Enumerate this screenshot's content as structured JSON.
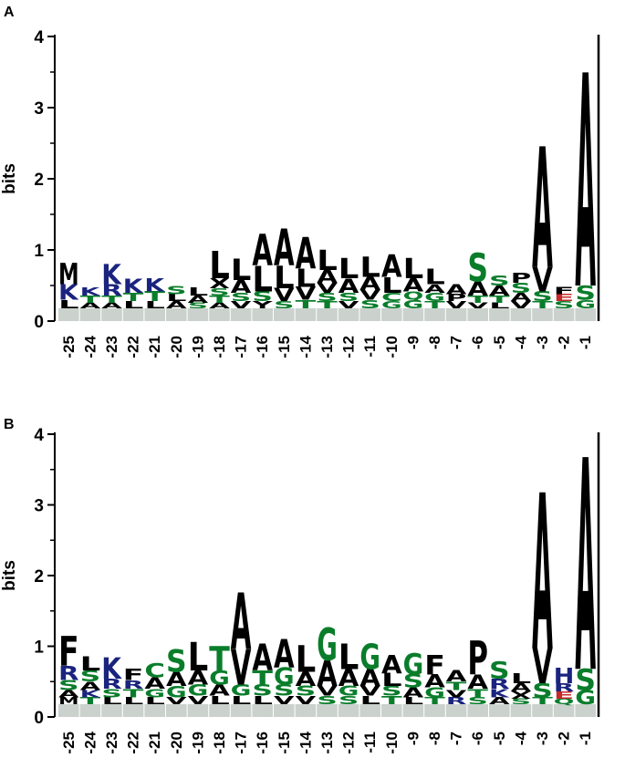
{
  "chart_data": [
    {
      "type": "sequence-logo",
      "panel_label": "A",
      "ylabel": "bits",
      "ylim": [
        0,
        4
      ],
      "yticks": [
        "0",
        "1",
        "2",
        "3",
        "4"
      ],
      "positions": [
        "-25",
        "-24",
        "-23",
        "-22",
        "-21",
        "-20",
        "-19",
        "-18",
        "-17",
        "-16",
        "-15",
        "-14",
        "-13",
        "-12",
        "-11",
        "-10",
        "-9",
        "-8",
        "-7",
        "-6",
        "-5",
        "-4",
        "-3",
        "-2",
        "-1"
      ],
      "stacks": [
        [
          [
            "M",
            0.3,
            "#000000"
          ],
          [
            "K",
            0.22,
            "#1a237e"
          ],
          [
            "L",
            0.12,
            "#000000"
          ]
        ],
        [
          [
            "K",
            0.12,
            "#1a237e"
          ],
          [
            "T",
            0.1,
            "#0a7d2b"
          ],
          [
            "A",
            0.08,
            "#000000"
          ]
        ],
        [
          [
            "K",
            0.28,
            "#1a237e"
          ],
          [
            "R",
            0.16,
            "#1a237e"
          ],
          [
            "T",
            0.1,
            "#0a7d2b"
          ],
          [
            "A",
            0.08,
            "#000000"
          ]
        ],
        [
          [
            "K",
            0.2,
            "#1a237e"
          ],
          [
            "T",
            0.12,
            "#0a7d2b"
          ],
          [
            "L",
            0.1,
            "#000000"
          ]
        ],
        [
          [
            "K",
            0.18,
            "#1a237e"
          ],
          [
            "T",
            0.14,
            "#0a7d2b"
          ],
          [
            "L",
            0.1,
            "#000000"
          ]
        ],
        [
          [
            "S",
            0.12,
            "#0a7d2b"
          ],
          [
            "L",
            0.1,
            "#000000"
          ],
          [
            "A",
            0.1,
            "#000000"
          ]
        ],
        [
          [
            "L",
            0.12,
            "#000000"
          ],
          [
            "A",
            0.1,
            "#000000"
          ],
          [
            "S",
            0.08,
            "#0a7d2b"
          ]
        ],
        [
          [
            "L",
            0.38,
            "#000000"
          ],
          [
            "X",
            0.14,
            "#000000"
          ],
          [
            "S",
            0.1,
            "#0a7d2b"
          ],
          [
            "T",
            0.1,
            "#0a7d2b"
          ],
          [
            "A",
            0.08,
            "#000000"
          ]
        ],
        [
          [
            "L",
            0.3,
            "#000000"
          ],
          [
            "A",
            0.18,
            "#000000"
          ],
          [
            "S",
            0.12,
            "#0a7d2b"
          ],
          [
            "V",
            0.1,
            "#000000"
          ]
        ],
        [
          [
            "A",
            0.44,
            "#000000"
          ],
          [
            "L",
            0.36,
            "#000000"
          ],
          [
            "S",
            0.14,
            "#0a7d2b"
          ],
          [
            "Y",
            0.1,
            "#000000"
          ]
        ],
        [
          [
            "A",
            0.52,
            "#000000"
          ],
          [
            "L",
            0.32,
            "#000000"
          ],
          [
            "V",
            0.18,
            "#000000"
          ],
          [
            "S",
            0.1,
            "#0a7d2b"
          ]
        ],
        [
          [
            "A",
            0.44,
            "#000000"
          ],
          [
            "L",
            0.26,
            "#000000"
          ],
          [
            "V",
            0.18,
            "#000000"
          ],
          [
            "T",
            0.12,
            "#0a7d2b"
          ]
        ],
        [
          [
            "L",
            0.28,
            "#000000"
          ],
          [
            "A",
            0.18,
            "#000000"
          ],
          [
            "V",
            0.14,
            "#000000"
          ],
          [
            "S",
            0.12,
            "#0a7d2b"
          ],
          [
            "T",
            0.1,
            "#0a7d2b"
          ]
        ],
        [
          [
            "L",
            0.28,
            "#000000"
          ],
          [
            "A",
            0.2,
            "#000000"
          ],
          [
            "S",
            0.12,
            "#0a7d2b"
          ],
          [
            "V",
            0.1,
            "#000000"
          ]
        ],
        [
          [
            "L",
            0.28,
            "#000000"
          ],
          [
            "A",
            0.18,
            "#000000"
          ],
          [
            "V",
            0.14,
            "#000000"
          ],
          [
            "S",
            0.12,
            "#0a7d2b"
          ]
        ],
        [
          [
            "A",
            0.32,
            "#000000"
          ],
          [
            "L",
            0.22,
            "#000000"
          ],
          [
            "C",
            0.12,
            "#0a7d2b"
          ],
          [
            "G",
            0.1,
            "#0a7d2b"
          ]
        ],
        [
          [
            "L",
            0.28,
            "#000000"
          ],
          [
            "A",
            0.18,
            "#000000"
          ],
          [
            "Q",
            0.12,
            "#0a7d2b"
          ],
          [
            "G",
            0.12,
            "#0a7d2b"
          ]
        ],
        [
          [
            "L",
            0.22,
            "#000000"
          ],
          [
            "A",
            0.12,
            "#000000"
          ],
          [
            "G",
            0.12,
            "#0a7d2b"
          ],
          [
            "T",
            0.1,
            "#0a7d2b"
          ]
        ],
        [
          [
            "A",
            0.14,
            "#000000"
          ],
          [
            "P",
            0.1,
            "#000000"
          ],
          [
            "V",
            0.1,
            "#000000"
          ]
        ],
        [
          [
            "S",
            0.4,
            "#0a7d2b"
          ],
          [
            "A",
            0.2,
            "#000000"
          ],
          [
            "T",
            0.1,
            "#0a7d2b"
          ],
          [
            "V",
            0.08,
            "#000000"
          ]
        ],
        [
          [
            "S",
            0.14,
            "#0a7d2b"
          ],
          [
            "A",
            0.14,
            "#000000"
          ],
          [
            "T",
            0.1,
            "#0a7d2b"
          ],
          [
            "L",
            0.08,
            "#000000"
          ]
        ],
        [
          [
            "P",
            0.14,
            "#000000"
          ],
          [
            "S",
            0.14,
            "#0a7d2b"
          ],
          [
            "A",
            0.12,
            "#000000"
          ],
          [
            "V",
            0.1,
            "#000000"
          ]
        ],
        [
          [
            "A",
            1.7,
            "#000000"
          ],
          [
            "V",
            0.34,
            "#000000"
          ],
          [
            "S",
            0.14,
            "#0a7d2b"
          ],
          [
            "T",
            0.1,
            "#0a7d2b"
          ]
        ],
        [
          [
            "F",
            0.1,
            "#000000"
          ],
          [
            "E",
            0.1,
            "#c62828"
          ],
          [
            "S",
            0.1,
            "#0a7d2b"
          ]
        ],
        [
          [
            "A",
            3.0,
            "#000000"
          ],
          [
            "S",
            0.2,
            "#0a7d2b"
          ],
          [
            "G",
            0.12,
            "#0a7d2b"
          ]
        ]
      ]
    },
    {
      "type": "sequence-logo",
      "panel_label": "B",
      "ylabel": "bits",
      "ylim": [
        0,
        4
      ],
      "yticks": [
        "0",
        "1",
        "2",
        "3",
        "4"
      ],
      "positions": [
        "-25",
        "-24",
        "-23",
        "-22",
        "-21",
        "-20",
        "-19",
        "-18",
        "-17",
        "-16",
        "-15",
        "-14",
        "-13",
        "-12",
        "-11",
        "-10",
        "-9",
        "-8",
        "-7",
        "-6",
        "-5",
        "-4",
        "-3",
        "-2",
        "-1"
      ],
      "stacks": [
        [
          [
            "F",
            0.42,
            "#000000"
          ],
          [
            "R",
            0.2,
            "#1a237e"
          ],
          [
            "S",
            0.14,
            "#0a7d2b"
          ],
          [
            "A",
            0.1,
            "#000000"
          ],
          [
            "M",
            0.1,
            "#000000"
          ]
        ],
        [
          [
            "L",
            0.2,
            "#000000"
          ],
          [
            "S",
            0.16,
            "#0a7d2b"
          ],
          [
            "A",
            0.12,
            "#000000"
          ],
          [
            "K",
            0.1,
            "#1a237e"
          ],
          [
            "T",
            0.1,
            "#0a7d2b"
          ]
        ],
        [
          [
            "K",
            0.3,
            "#1a237e"
          ],
          [
            "R",
            0.14,
            "#1a237e"
          ],
          [
            "S",
            0.12,
            "#0a7d2b"
          ],
          [
            "L",
            0.1,
            "#000000"
          ]
        ],
        [
          [
            "F",
            0.16,
            "#000000"
          ],
          [
            "R",
            0.12,
            "#1a237e"
          ],
          [
            "T",
            0.12,
            "#0a7d2b"
          ],
          [
            "L",
            0.1,
            "#000000"
          ]
        ],
        [
          [
            "C",
            0.2,
            "#0a7d2b"
          ],
          [
            "A",
            0.16,
            "#000000"
          ],
          [
            "G",
            0.12,
            "#0a7d2b"
          ],
          [
            "L",
            0.1,
            "#000000"
          ]
        ],
        [
          [
            "S",
            0.32,
            "#0a7d2b"
          ],
          [
            "A",
            0.2,
            "#000000"
          ],
          [
            "G",
            0.16,
            "#0a7d2b"
          ],
          [
            "V",
            0.1,
            "#000000"
          ]
        ],
        [
          [
            "L",
            0.4,
            "#000000"
          ],
          [
            "A",
            0.2,
            "#000000"
          ],
          [
            "G",
            0.16,
            "#0a7d2b"
          ],
          [
            "V",
            0.12,
            "#000000"
          ]
        ],
        [
          [
            "T",
            0.34,
            "#0a7d2b"
          ],
          [
            "G",
            0.2,
            "#0a7d2b"
          ],
          [
            "A",
            0.16,
            "#000000"
          ],
          [
            "L",
            0.12,
            "#000000"
          ]
        ],
        [
          [
            "A",
            0.8,
            "#000000"
          ],
          [
            "V",
            0.5,
            "#000000"
          ],
          [
            "G",
            0.16,
            "#0a7d2b"
          ],
          [
            "L",
            0.12,
            "#000000"
          ]
        ],
        [
          [
            "A",
            0.38,
            "#000000"
          ],
          [
            "T",
            0.2,
            "#0a7d2b"
          ],
          [
            "S",
            0.16,
            "#0a7d2b"
          ],
          [
            "L",
            0.12,
            "#000000"
          ]
        ],
        [
          [
            "A",
            0.4,
            "#000000"
          ],
          [
            "G",
            0.24,
            "#0a7d2b"
          ],
          [
            "S",
            0.16,
            "#0a7d2b"
          ],
          [
            "V",
            0.12,
            "#000000"
          ]
        ],
        [
          [
            "L",
            0.38,
            "#000000"
          ],
          [
            "A",
            0.2,
            "#000000"
          ],
          [
            "S",
            0.14,
            "#0a7d2b"
          ],
          [
            "V",
            0.12,
            "#000000"
          ]
        ],
        [
          [
            "G",
            0.46,
            "#0a7d2b"
          ],
          [
            "A",
            0.36,
            "#000000"
          ],
          [
            "V",
            0.14,
            "#000000"
          ],
          [
            "S",
            0.12,
            "#0a7d2b"
          ]
        ],
        [
          [
            "L",
            0.36,
            "#000000"
          ],
          [
            "A",
            0.24,
            "#000000"
          ],
          [
            "G",
            0.14,
            "#0a7d2b"
          ],
          [
            "S",
            0.12,
            "#0a7d2b"
          ]
        ],
        [
          [
            "G",
            0.36,
            "#0a7d2b"
          ],
          [
            "A",
            0.24,
            "#000000"
          ],
          [
            "V",
            0.14,
            "#000000"
          ],
          [
            "L",
            0.12,
            "#000000"
          ]
        ],
        [
          [
            "A",
            0.26,
            "#000000"
          ],
          [
            "L",
            0.18,
            "#000000"
          ],
          [
            "S",
            0.14,
            "#0a7d2b"
          ],
          [
            "T",
            0.12,
            "#0a7d2b"
          ]
        ],
        [
          [
            "G",
            0.3,
            "#0a7d2b"
          ],
          [
            "S",
            0.18,
            "#0a7d2b"
          ],
          [
            "A",
            0.14,
            "#000000"
          ],
          [
            "L",
            0.1,
            "#000000"
          ]
        ],
        [
          [
            "F",
            0.28,
            "#000000"
          ],
          [
            "A",
            0.18,
            "#000000"
          ],
          [
            "G",
            0.14,
            "#0a7d2b"
          ],
          [
            "T",
            0.1,
            "#0a7d2b"
          ]
        ],
        [
          [
            "A",
            0.16,
            "#000000"
          ],
          [
            "T",
            0.12,
            "#0a7d2b"
          ],
          [
            "V",
            0.1,
            "#000000"
          ],
          [
            "R",
            0.1,
            "#1a237e"
          ]
        ],
        [
          [
            "P",
            0.48,
            "#000000"
          ],
          [
            "A",
            0.2,
            "#000000"
          ],
          [
            "T",
            0.12,
            "#0a7d2b"
          ],
          [
            "S",
            0.1,
            "#0a7d2b"
          ]
        ],
        [
          [
            "S",
            0.24,
            "#0a7d2b"
          ],
          [
            "R",
            0.14,
            "#1a237e"
          ],
          [
            "K",
            0.12,
            "#1a237e"
          ],
          [
            "A",
            0.1,
            "#000000"
          ]
        ],
        [
          [
            "L",
            0.14,
            "#000000"
          ],
          [
            "A",
            0.12,
            "#000000"
          ],
          [
            "X",
            0.1,
            "#000000"
          ],
          [
            "S",
            0.08,
            "#0a7d2b"
          ]
        ],
        [
          [
            "A",
            2.2,
            "#000000"
          ],
          [
            "V",
            0.5,
            "#000000"
          ],
          [
            "S",
            0.2,
            "#0a7d2b"
          ],
          [
            "T",
            0.1,
            "#0a7d2b"
          ]
        ],
        [
          [
            "H",
            0.22,
            "#1a237e"
          ],
          [
            "R",
            0.12,
            "#1a237e"
          ],
          [
            "E",
            0.1,
            "#c62828"
          ],
          [
            "Q",
            0.08,
            "#0a7d2b"
          ]
        ],
        [
          [
            "A",
            3.0,
            "#000000"
          ],
          [
            "S",
            0.3,
            "#0a7d2b"
          ],
          [
            "G",
            0.2,
            "#0a7d2b"
          ]
        ]
      ]
    }
  ]
}
